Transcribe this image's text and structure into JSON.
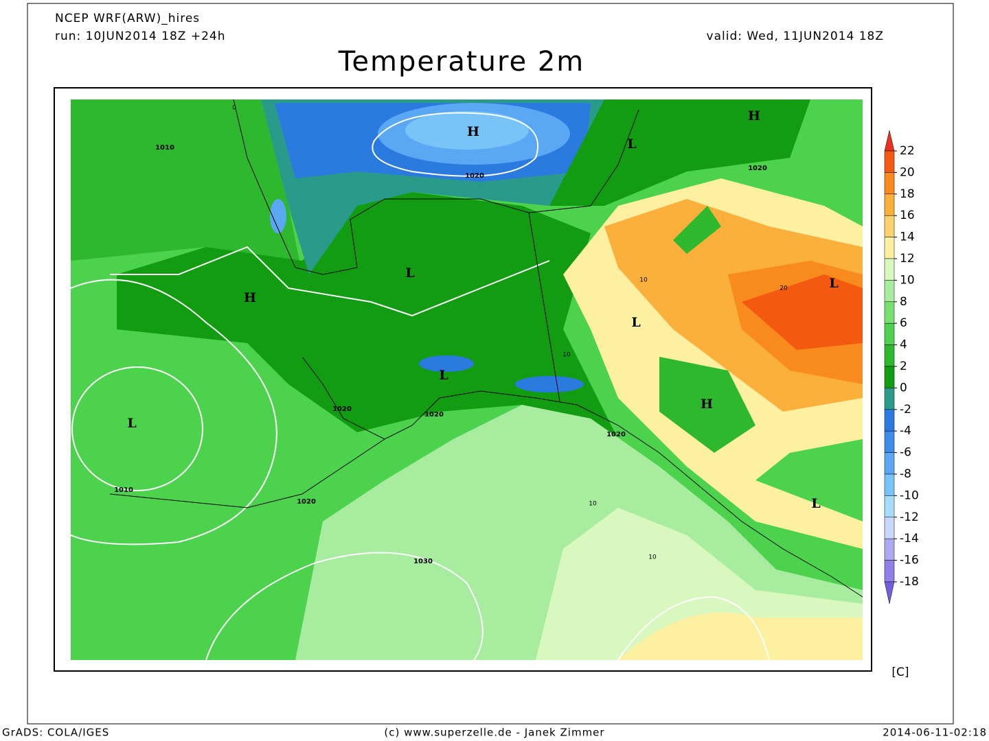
{
  "header": {
    "model": "NCEP WRF(ARW)_hires",
    "run": "run: 10JUN2014 18Z +24h",
    "valid": "valid: Wed, 11JUN2014 18Z",
    "title": "Temperature 2m"
  },
  "map": {
    "pressure_centers": [
      "H",
      "L",
      "H",
      "L",
      "H",
      "L",
      "L",
      "L",
      "L",
      "H",
      "L"
    ],
    "isobars": [
      1010,
      1020,
      1020,
      1020,
      1020,
      1020,
      1010,
      1020,
      1030
    ],
    "temperature_labels": [
      0,
      10,
      20,
      10,
      10,
      10
    ]
  },
  "colorbar": {
    "ticks": [
      22,
      20,
      18,
      16,
      14,
      12,
      10,
      8,
      6,
      4,
      2,
      0,
      -2,
      -4,
      -6,
      -8,
      -10,
      -12,
      -14,
      -16,
      -18
    ],
    "colors": [
      "#e8321e",
      "#f45a0f",
      "#f88a1e",
      "#fbb03b",
      "#fcd26e",
      "#fdf0a0",
      "#d8f8c0",
      "#a8eca0",
      "#78e070",
      "#4cd24c",
      "#2eb82e",
      "#119c11",
      "#2a9a8a",
      "#2a7ae0",
      "#3c8cec",
      "#5aa8f4",
      "#78c4f8",
      "#a8dcfc",
      "#c8d8fc",
      "#b0a8f0",
      "#9080e8",
      "#7060e0"
    ],
    "unit": "[C]"
  },
  "footer": {
    "left": "GrADS: COLA/IGES",
    "center": "(c) www.superzelle.de - Janek Zimmer",
    "right": "2014-06-11-02:18"
  }
}
